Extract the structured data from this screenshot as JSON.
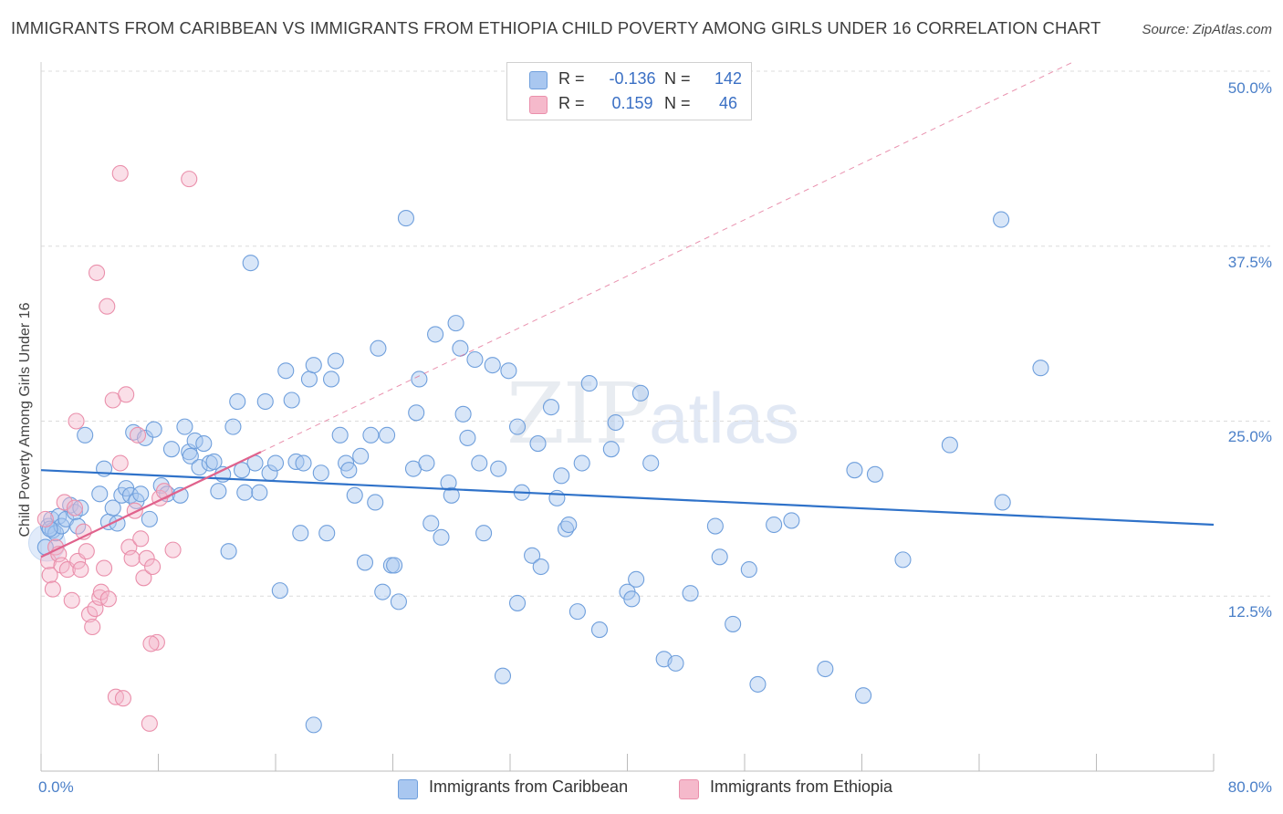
{
  "title": "IMMIGRANTS FROM CARIBBEAN VS IMMIGRANTS FROM ETHIOPIA CHILD POVERTY AMONG GIRLS UNDER 16 CORRELATION CHART",
  "source": "Source: ZipAtlas.com",
  "watermark": {
    "zip": "ZIP",
    "atlas": "atlas"
  },
  "legend": {
    "r_label": "R =",
    "n_label": "N =",
    "rows": [
      {
        "name": "Immigrants from Caribbean",
        "r": "-0.136",
        "n": "142",
        "color": "#a9c7f0"
      },
      {
        "name": "Immigrants from Ethiopia",
        "r": "0.159",
        "n": "46",
        "color": "#f5b9cb"
      }
    ]
  },
  "colors": {
    "blue_fill": "#a9c7f0",
    "blue_stroke": "#6f9fdc",
    "blue_line": "#2f72c9",
    "pink_fill": "#f5b9cb",
    "pink_stroke": "#ea8fab",
    "pink_line": "#e0628c",
    "grid": "#dcdcdc",
    "axis_text": "#4a7fc8"
  },
  "chart_data": {
    "type": "scatter",
    "title": "IMMIGRANTS FROM CARIBBEAN VS IMMIGRANTS FROM ETHIOPIA CHILD POVERTY AMONG GIRLS UNDER 16 CORRELATION CHART",
    "xlabel": "",
    "ylabel": "Child Poverty Among Girls Under 16",
    "xlim": [
      0,
      80
    ],
    "ylim": [
      0,
      50
    ],
    "x_tick_labels": [
      "0.0%",
      "80.0%"
    ],
    "y_ticks": [
      12.5,
      25.0,
      37.5,
      50.0
    ],
    "y_tick_labels": [
      "12.5%",
      "25.0%",
      "37.5%",
      "50.0%"
    ],
    "grid": true,
    "legend_position": "top-center",
    "series": [
      {
        "name": "Immigrants from Caribbean",
        "color": "#a9c7f0",
        "trend": {
          "x": [
            0,
            80
          ],
          "y": [
            21.5,
            17.6
          ]
        },
        "points": [
          [
            0.3,
            16.0
          ],
          [
            0.5,
            17.5
          ],
          [
            0.7,
            18.0
          ],
          [
            0.8,
            17.2
          ],
          [
            1.0,
            17.0
          ],
          [
            1.2,
            18.2
          ],
          [
            1.4,
            17.5
          ],
          [
            1.7,
            18.0
          ],
          [
            2.0,
            19.0
          ],
          [
            2.3,
            18.5
          ],
          [
            2.7,
            18.8
          ],
          [
            3.0,
            24.0
          ],
          [
            4.0,
            19.8
          ],
          [
            4.3,
            21.6
          ],
          [
            4.6,
            17.8
          ],
          [
            4.9,
            18.8
          ],
          [
            5.2,
            17.7
          ],
          [
            5.5,
            19.7
          ],
          [
            5.8,
            20.2
          ],
          [
            6.1,
            19.7
          ],
          [
            6.3,
            24.2
          ],
          [
            6.5,
            19.3
          ],
          [
            6.8,
            19.8
          ],
          [
            7.1,
            23.8
          ],
          [
            7.4,
            18.0
          ],
          [
            7.7,
            24.4
          ],
          [
            8.2,
            20.4
          ],
          [
            8.6,
            19.8
          ],
          [
            8.9,
            23.0
          ],
          [
            9.5,
            19.7
          ],
          [
            9.8,
            24.6
          ],
          [
            10.1,
            22.8
          ],
          [
            10.2,
            22.5
          ],
          [
            10.5,
            23.6
          ],
          [
            10.8,
            21.7
          ],
          [
            11.1,
            23.4
          ],
          [
            11.5,
            22.0
          ],
          [
            11.8,
            22.1
          ],
          [
            12.1,
            20.0
          ],
          [
            12.4,
            21.2
          ],
          [
            12.8,
            15.7
          ],
          [
            13.1,
            24.6
          ],
          [
            13.4,
            26.4
          ],
          [
            13.7,
            21.5
          ],
          [
            13.9,
            19.9
          ],
          [
            14.3,
            36.3
          ],
          [
            14.6,
            22.0
          ],
          [
            14.9,
            19.9
          ],
          [
            15.3,
            26.4
          ],
          [
            15.6,
            21.3
          ],
          [
            16.0,
            22.0
          ],
          [
            16.3,
            12.9
          ],
          [
            16.7,
            28.6
          ],
          [
            17.1,
            26.5
          ],
          [
            17.4,
            22.1
          ],
          [
            17.7,
            17.0
          ],
          [
            17.9,
            22.0
          ],
          [
            18.3,
            28.0
          ],
          [
            18.6,
            29.0
          ],
          [
            18.6,
            3.3
          ],
          [
            19.1,
            21.3
          ],
          [
            19.5,
            17.0
          ],
          [
            19.8,
            28.0
          ],
          [
            20.1,
            29.3
          ],
          [
            20.4,
            24.0
          ],
          [
            20.8,
            22.0
          ],
          [
            21.0,
            21.5
          ],
          [
            21.4,
            19.7
          ],
          [
            21.8,
            22.5
          ],
          [
            22.1,
            14.9
          ],
          [
            22.5,
            24.0
          ],
          [
            22.8,
            19.2
          ],
          [
            23.0,
            30.2
          ],
          [
            23.3,
            12.8
          ],
          [
            23.6,
            24.0
          ],
          [
            23.9,
            14.7
          ],
          [
            24.1,
            14.7
          ],
          [
            24.4,
            12.1
          ],
          [
            24.9,
            39.5
          ],
          [
            25.4,
            21.6
          ],
          [
            25.6,
            25.6
          ],
          [
            25.8,
            28.0
          ],
          [
            26.3,
            22.0
          ],
          [
            26.6,
            17.7
          ],
          [
            26.9,
            31.2
          ],
          [
            27.3,
            16.7
          ],
          [
            27.8,
            20.6
          ],
          [
            28.0,
            19.7
          ],
          [
            28.3,
            32.0
          ],
          [
            28.6,
            30.2
          ],
          [
            28.8,
            25.5
          ],
          [
            29.1,
            23.8
          ],
          [
            29.6,
            29.4
          ],
          [
            29.9,
            22.0
          ],
          [
            30.2,
            17.0
          ],
          [
            30.8,
            29.0
          ],
          [
            31.2,
            21.6
          ],
          [
            31.5,
            6.8
          ],
          [
            31.9,
            28.6
          ],
          [
            32.5,
            24.6
          ],
          [
            32.5,
            12.0
          ],
          [
            32.8,
            19.9
          ],
          [
            33.5,
            15.4
          ],
          [
            33.9,
            23.4
          ],
          [
            34.1,
            14.6
          ],
          [
            34.8,
            26.0
          ],
          [
            35.2,
            19.5
          ],
          [
            35.5,
            21.1
          ],
          [
            35.8,
            17.3
          ],
          [
            36.0,
            17.6
          ],
          [
            36.6,
            11.4
          ],
          [
            36.9,
            22.0
          ],
          [
            37.4,
            27.7
          ],
          [
            38.1,
            10.1
          ],
          [
            38.9,
            23.0
          ],
          [
            39.2,
            24.9
          ],
          [
            40.0,
            12.8
          ],
          [
            40.3,
            12.3
          ],
          [
            40.6,
            13.7
          ],
          [
            40.9,
            27.0
          ],
          [
            41.6,
            22.0
          ],
          [
            42.5,
            8.0
          ],
          [
            43.3,
            7.7
          ],
          [
            44.3,
            12.7
          ],
          [
            46.0,
            17.5
          ],
          [
            46.3,
            15.3
          ],
          [
            47.2,
            10.5
          ],
          [
            48.3,
            14.4
          ],
          [
            48.9,
            6.2
          ],
          [
            50.0,
            17.6
          ],
          [
            51.2,
            17.9
          ],
          [
            53.5,
            7.3
          ],
          [
            55.5,
            21.5
          ],
          [
            56.1,
            5.4
          ],
          [
            56.9,
            21.2
          ],
          [
            58.8,
            15.1
          ],
          [
            62.0,
            23.3
          ],
          [
            65.5,
            39.4
          ],
          [
            65.6,
            19.2
          ],
          [
            68.2,
            28.8
          ],
          [
            0.6,
            17.3
          ],
          [
            2.5,
            17.5
          ]
        ]
      },
      {
        "name": "Immigrants from Ethiopia",
        "color": "#f5b9cb",
        "trend": {
          "x": [
            0,
            15
          ],
          "y": [
            15.3,
            22.8
          ]
        },
        "points": [
          [
            0.3,
            18.0
          ],
          [
            0.5,
            15.0
          ],
          [
            0.6,
            14.0
          ],
          [
            0.8,
            13.0
          ],
          [
            1.0,
            16.0
          ],
          [
            1.2,
            15.5
          ],
          [
            1.4,
            14.7
          ],
          [
            1.6,
            19.2
          ],
          [
            1.8,
            14.4
          ],
          [
            2.1,
            12.2
          ],
          [
            2.3,
            18.8
          ],
          [
            2.5,
            15.0
          ],
          [
            2.7,
            14.4
          ],
          [
            2.9,
            17.1
          ],
          [
            3.1,
            15.7
          ],
          [
            3.3,
            11.2
          ],
          [
            3.5,
            10.3
          ],
          [
            3.7,
            11.6
          ],
          [
            3.8,
            35.6
          ],
          [
            4.0,
            12.4
          ],
          [
            4.1,
            12.8
          ],
          [
            4.3,
            14.5
          ],
          [
            4.5,
            33.2
          ],
          [
            4.6,
            12.3
          ],
          [
            4.9,
            26.5
          ],
          [
            5.1,
            5.3
          ],
          [
            5.4,
            22.0
          ],
          [
            5.6,
            5.2
          ],
          [
            5.8,
            26.9
          ],
          [
            6.0,
            16.0
          ],
          [
            6.2,
            15.2
          ],
          [
            6.4,
            18.6
          ],
          [
            6.6,
            24.0
          ],
          [
            6.8,
            16.6
          ],
          [
            7.0,
            13.8
          ],
          [
            7.2,
            15.2
          ],
          [
            7.4,
            3.4
          ],
          [
            7.6,
            14.6
          ],
          [
            7.9,
            9.2
          ],
          [
            8.1,
            19.5
          ],
          [
            8.4,
            20.0
          ],
          [
            9.0,
            15.8
          ],
          [
            5.4,
            42.7
          ],
          [
            10.1,
            42.3
          ],
          [
            2.4,
            25.0
          ],
          [
            7.5,
            9.1
          ]
        ]
      }
    ]
  }
}
